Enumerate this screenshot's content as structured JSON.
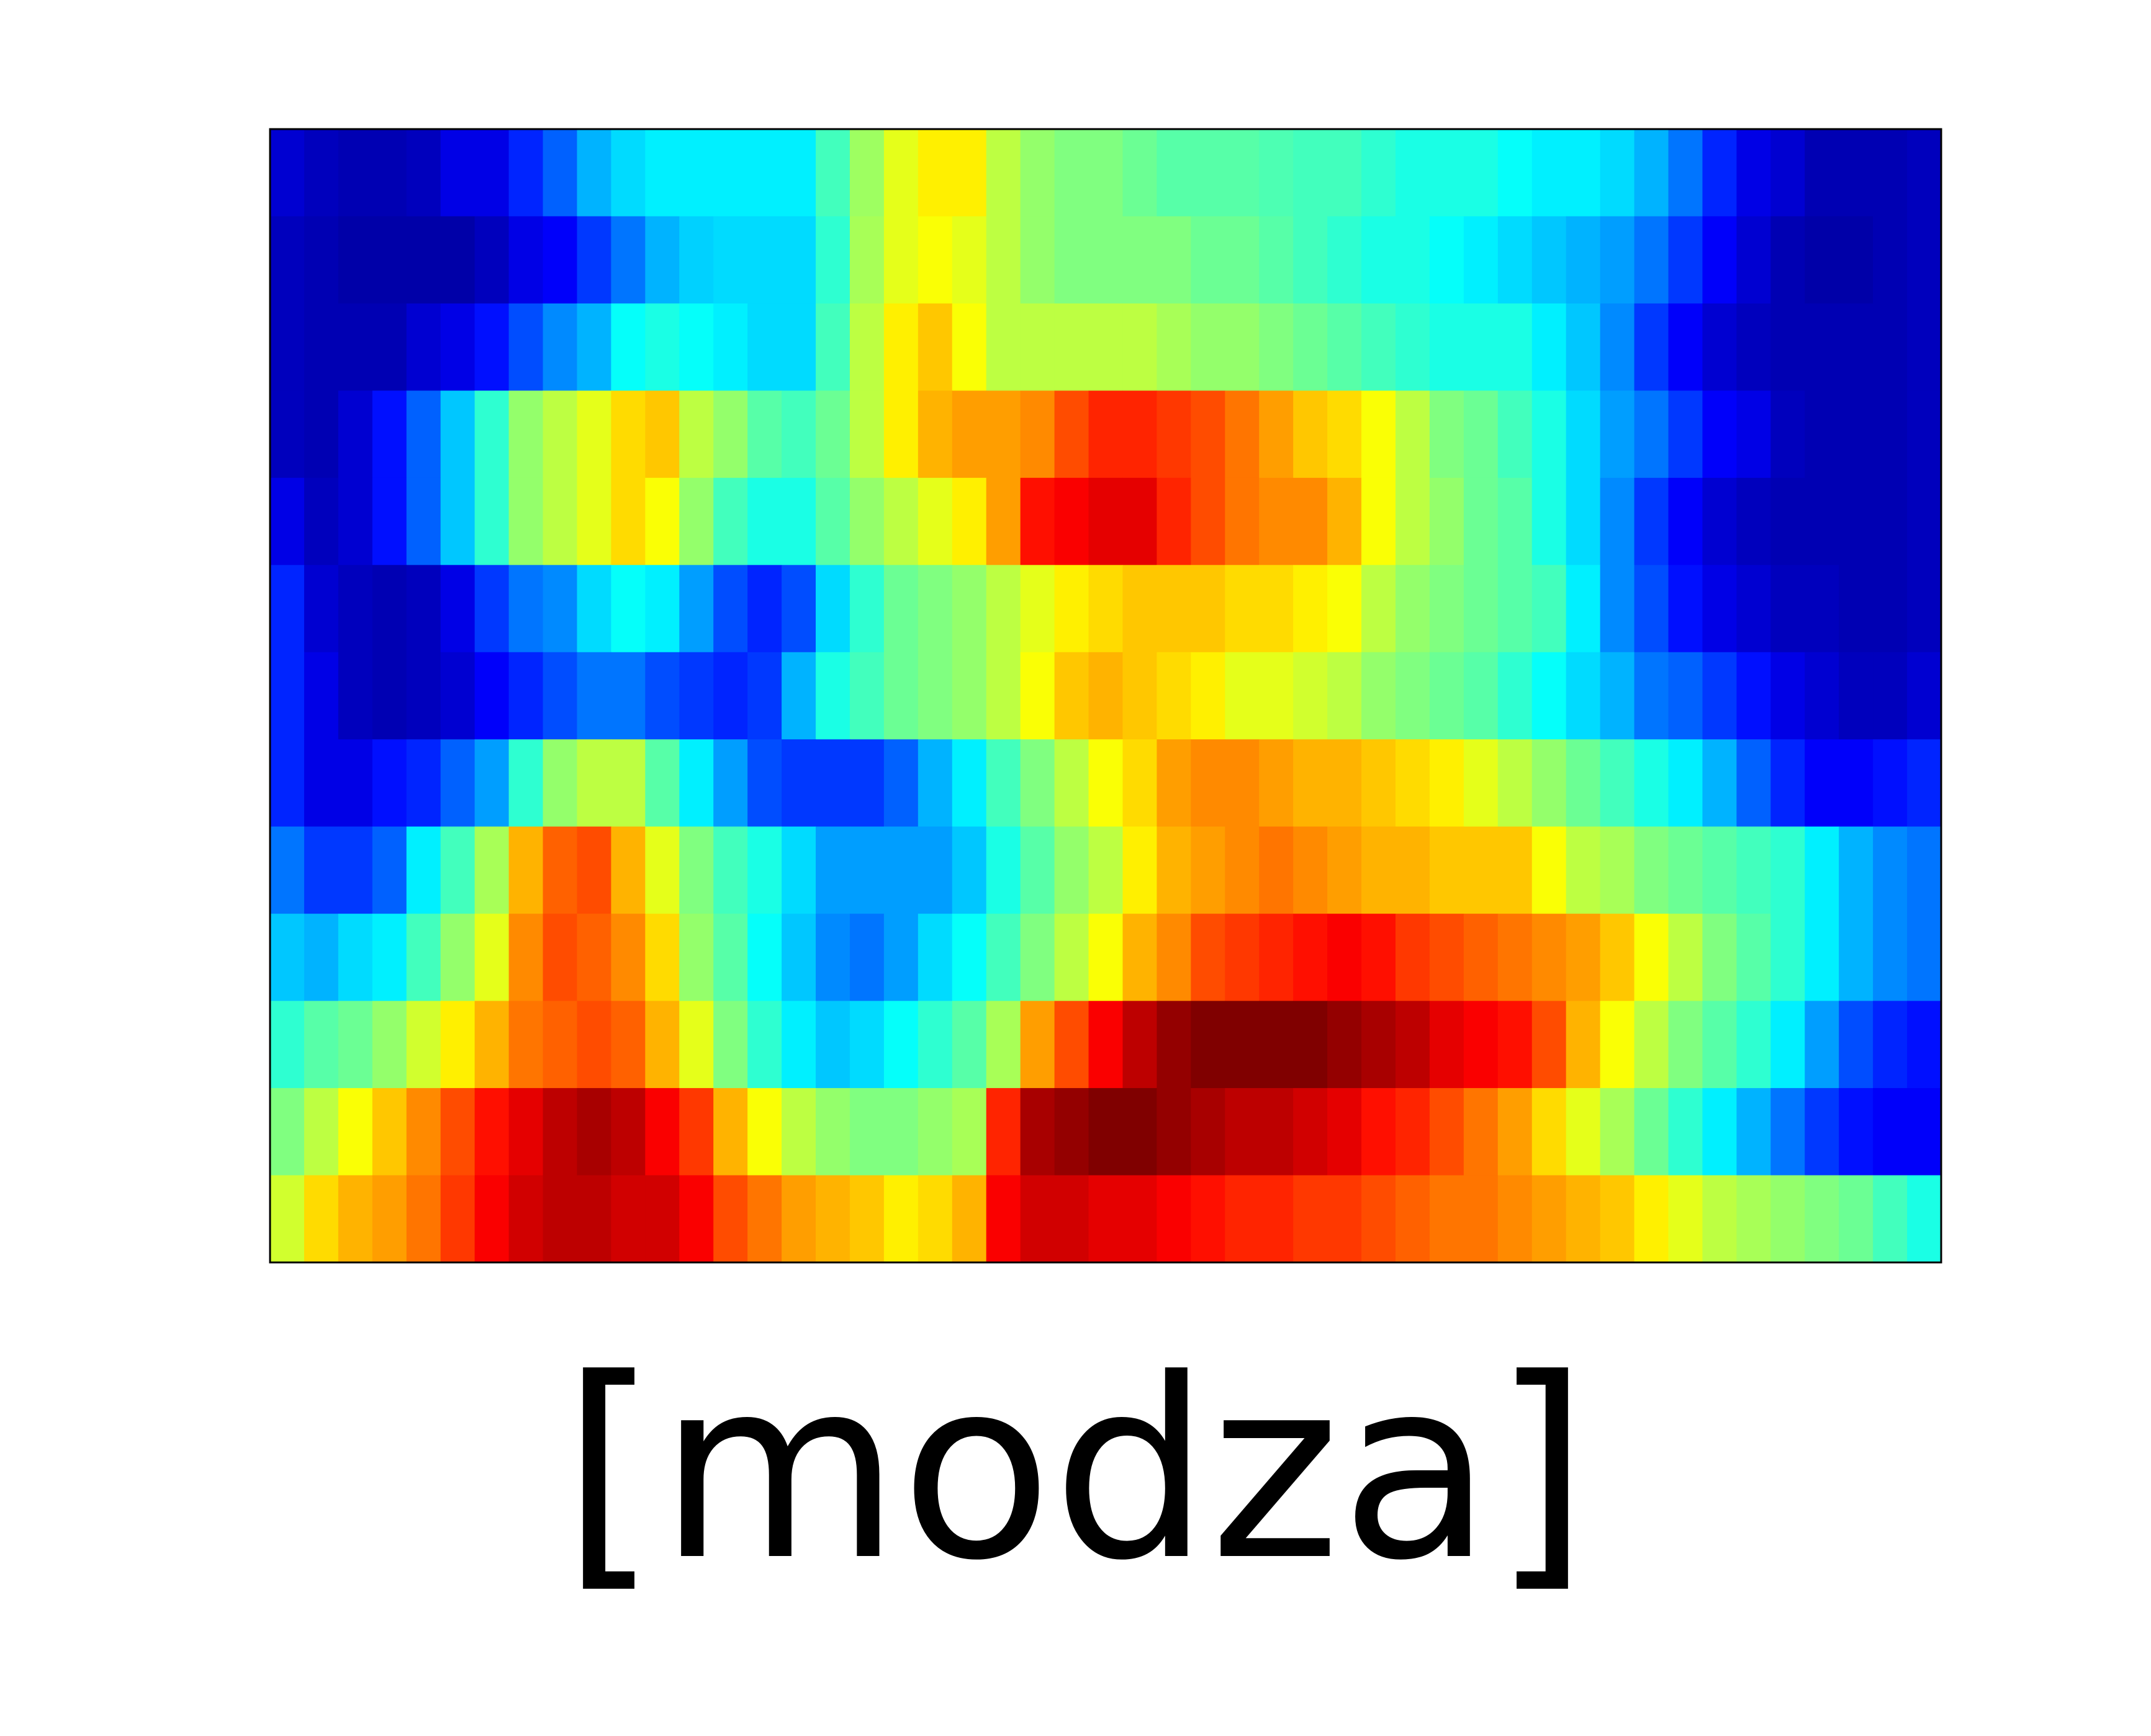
{
  "chart_data": {
    "type": "heatmap",
    "title": "",
    "xlabel": "",
    "ylabel": "",
    "colormap": "jet",
    "value_range": [
      0,
      1
    ],
    "rows": 13,
    "cols": 49,
    "values": [
      [
        0.08,
        0.06,
        0.05,
        0.05,
        0.06,
        0.1,
        0.1,
        0.16,
        0.22,
        0.3,
        0.34,
        0.36,
        0.36,
        0.36,
        0.36,
        0.36,
        0.44,
        0.53,
        0.6,
        0.64,
        0.64,
        0.56,
        0.52,
        0.5,
        0.5,
        0.48,
        0.46,
        0.46,
        0.46,
        0.45,
        0.44,
        0.44,
        0.42,
        0.4,
        0.4,
        0.4,
        0.38,
        0.36,
        0.36,
        0.34,
        0.3,
        0.24,
        0.16,
        0.1,
        0.08,
        0.05,
        0.05,
        0.05,
        0.06
      ],
      [
        0.06,
        0.05,
        0.04,
        0.04,
        0.04,
        0.04,
        0.06,
        0.1,
        0.12,
        0.18,
        0.24,
        0.3,
        0.33,
        0.34,
        0.34,
        0.34,
        0.42,
        0.54,
        0.6,
        0.62,
        0.6,
        0.56,
        0.52,
        0.5,
        0.5,
        0.5,
        0.5,
        0.48,
        0.48,
        0.46,
        0.44,
        0.42,
        0.4,
        0.4,
        0.38,
        0.36,
        0.34,
        0.32,
        0.3,
        0.28,
        0.24,
        0.18,
        0.12,
        0.08,
        0.05,
        0.04,
        0.04,
        0.05,
        0.06
      ],
      [
        0.06,
        0.05,
        0.05,
        0.05,
        0.08,
        0.1,
        0.14,
        0.2,
        0.26,
        0.3,
        0.38,
        0.4,
        0.38,
        0.36,
        0.34,
        0.34,
        0.44,
        0.56,
        0.64,
        0.68,
        0.62,
        0.56,
        0.56,
        0.56,
        0.56,
        0.56,
        0.54,
        0.52,
        0.52,
        0.5,
        0.48,
        0.46,
        0.44,
        0.42,
        0.4,
        0.4,
        0.4,
        0.36,
        0.32,
        0.26,
        0.18,
        0.12,
        0.08,
        0.06,
        0.05,
        0.05,
        0.05,
        0.05,
        0.06
      ],
      [
        0.06,
        0.05,
        0.08,
        0.14,
        0.22,
        0.32,
        0.42,
        0.52,
        0.56,
        0.6,
        0.66,
        0.68,
        0.56,
        0.52,
        0.46,
        0.44,
        0.48,
        0.56,
        0.64,
        0.7,
        0.72,
        0.72,
        0.74,
        0.8,
        0.84,
        0.84,
        0.82,
        0.8,
        0.76,
        0.72,
        0.68,
        0.66,
        0.62,
        0.56,
        0.5,
        0.48,
        0.44,
        0.4,
        0.34,
        0.28,
        0.24,
        0.18,
        0.12,
        0.1,
        0.06,
        0.05,
        0.05,
        0.05,
        0.06
      ],
      [
        0.1,
        0.06,
        0.08,
        0.14,
        0.22,
        0.32,
        0.42,
        0.52,
        0.56,
        0.6,
        0.66,
        0.62,
        0.52,
        0.44,
        0.4,
        0.4,
        0.46,
        0.52,
        0.56,
        0.6,
        0.64,
        0.72,
        0.86,
        0.88,
        0.9,
        0.9,
        0.84,
        0.8,
        0.76,
        0.74,
        0.74,
        0.7,
        0.62,
        0.56,
        0.52,
        0.48,
        0.46,
        0.4,
        0.34,
        0.26,
        0.18,
        0.12,
        0.08,
        0.06,
        0.05,
        0.05,
        0.05,
        0.05,
        0.06
      ],
      [
        0.16,
        0.08,
        0.06,
        0.05,
        0.06,
        0.1,
        0.18,
        0.24,
        0.26,
        0.34,
        0.38,
        0.36,
        0.28,
        0.2,
        0.16,
        0.2,
        0.34,
        0.42,
        0.48,
        0.5,
        0.52,
        0.56,
        0.6,
        0.64,
        0.66,
        0.68,
        0.68,
        0.68,
        0.66,
        0.66,
        0.64,
        0.62,
        0.56,
        0.52,
        0.5,
        0.48,
        0.46,
        0.44,
        0.36,
        0.26,
        0.2,
        0.14,
        0.1,
        0.08,
        0.06,
        0.06,
        0.05,
        0.05,
        0.06
      ],
      [
        0.16,
        0.1,
        0.06,
        0.05,
        0.06,
        0.08,
        0.12,
        0.16,
        0.2,
        0.24,
        0.24,
        0.2,
        0.18,
        0.16,
        0.18,
        0.3,
        0.4,
        0.44,
        0.48,
        0.5,
        0.52,
        0.56,
        0.62,
        0.68,
        0.7,
        0.68,
        0.66,
        0.64,
        0.6,
        0.6,
        0.58,
        0.56,
        0.52,
        0.5,
        0.48,
        0.46,
        0.42,
        0.38,
        0.34,
        0.3,
        0.24,
        0.22,
        0.18,
        0.14,
        0.1,
        0.08,
        0.06,
        0.06,
        0.08
      ],
      [
        0.16,
        0.1,
        0.1,
        0.14,
        0.16,
        0.22,
        0.28,
        0.42,
        0.52,
        0.56,
        0.56,
        0.46,
        0.36,
        0.28,
        0.2,
        0.18,
        0.18,
        0.18,
        0.22,
        0.3,
        0.36,
        0.44,
        0.5,
        0.56,
        0.62,
        0.66,
        0.72,
        0.74,
        0.74,
        0.72,
        0.7,
        0.7,
        0.68,
        0.66,
        0.64,
        0.6,
        0.56,
        0.52,
        0.48,
        0.44,
        0.4,
        0.36,
        0.3,
        0.22,
        0.16,
        0.12,
        0.12,
        0.14,
        0.16
      ],
      [
        0.24,
        0.18,
        0.18,
        0.22,
        0.36,
        0.44,
        0.54,
        0.7,
        0.78,
        0.8,
        0.7,
        0.6,
        0.5,
        0.44,
        0.4,
        0.34,
        0.28,
        0.28,
        0.28,
        0.28,
        0.32,
        0.4,
        0.46,
        0.52,
        0.56,
        0.64,
        0.7,
        0.72,
        0.74,
        0.76,
        0.74,
        0.72,
        0.7,
        0.7,
        0.68,
        0.68,
        0.68,
        0.62,
        0.56,
        0.54,
        0.5,
        0.48,
        0.46,
        0.44,
        0.42,
        0.36,
        0.3,
        0.26,
        0.24
      ],
      [
        0.32,
        0.3,
        0.34,
        0.36,
        0.44,
        0.52,
        0.6,
        0.74,
        0.8,
        0.78,
        0.74,
        0.66,
        0.52,
        0.46,
        0.38,
        0.32,
        0.26,
        0.24,
        0.28,
        0.34,
        0.38,
        0.44,
        0.5,
        0.56,
        0.62,
        0.7,
        0.74,
        0.8,
        0.82,
        0.84,
        0.86,
        0.88,
        0.86,
        0.82,
        0.8,
        0.78,
        0.76,
        0.74,
        0.72,
        0.68,
        0.62,
        0.56,
        0.5,
        0.46,
        0.42,
        0.36,
        0.3,
        0.26,
        0.24
      ],
      [
        0.42,
        0.46,
        0.48,
        0.52,
        0.58,
        0.64,
        0.7,
        0.76,
        0.78,
        0.8,
        0.78,
        0.7,
        0.6,
        0.5,
        0.42,
        0.36,
        0.32,
        0.34,
        0.38,
        0.42,
        0.46,
        0.54,
        0.72,
        0.8,
        0.88,
        0.94,
        0.98,
        1.0,
        1.0,
        1.0,
        1.0,
        0.98,
        0.96,
        0.94,
        0.9,
        0.88,
        0.86,
        0.8,
        0.7,
        0.62,
        0.56,
        0.5,
        0.46,
        0.42,
        0.36,
        0.28,
        0.2,
        0.16,
        0.14
      ],
      [
        0.5,
        0.56,
        0.62,
        0.68,
        0.74,
        0.8,
        0.86,
        0.9,
        0.94,
        0.96,
        0.94,
        0.88,
        0.82,
        0.7,
        0.62,
        0.56,
        0.52,
        0.5,
        0.5,
        0.52,
        0.54,
        0.84,
        0.96,
        0.98,
        1.0,
        1.0,
        0.98,
        0.96,
        0.94,
        0.94,
        0.92,
        0.9,
        0.86,
        0.84,
        0.8,
        0.76,
        0.72,
        0.66,
        0.6,
        0.54,
        0.48,
        0.42,
        0.36,
        0.3,
        0.24,
        0.18,
        0.14,
        0.12,
        0.12
      ],
      [
        0.58,
        0.66,
        0.7,
        0.72,
        0.76,
        0.82,
        0.88,
        0.92,
        0.94,
        0.94,
        0.92,
        0.92,
        0.88,
        0.8,
        0.76,
        0.72,
        0.7,
        0.68,
        0.64,
        0.66,
        0.7,
        0.88,
        0.92,
        0.92,
        0.9,
        0.9,
        0.88,
        0.86,
        0.84,
        0.84,
        0.82,
        0.82,
        0.8,
        0.78,
        0.76,
        0.76,
        0.74,
        0.72,
        0.7,
        0.68,
        0.64,
        0.6,
        0.56,
        0.54,
        0.52,
        0.5,
        0.48,
        0.44,
        0.4
      ]
    ],
    "grid": false,
    "legend": "none"
  },
  "caption": {
    "label": "[modza]"
  }
}
